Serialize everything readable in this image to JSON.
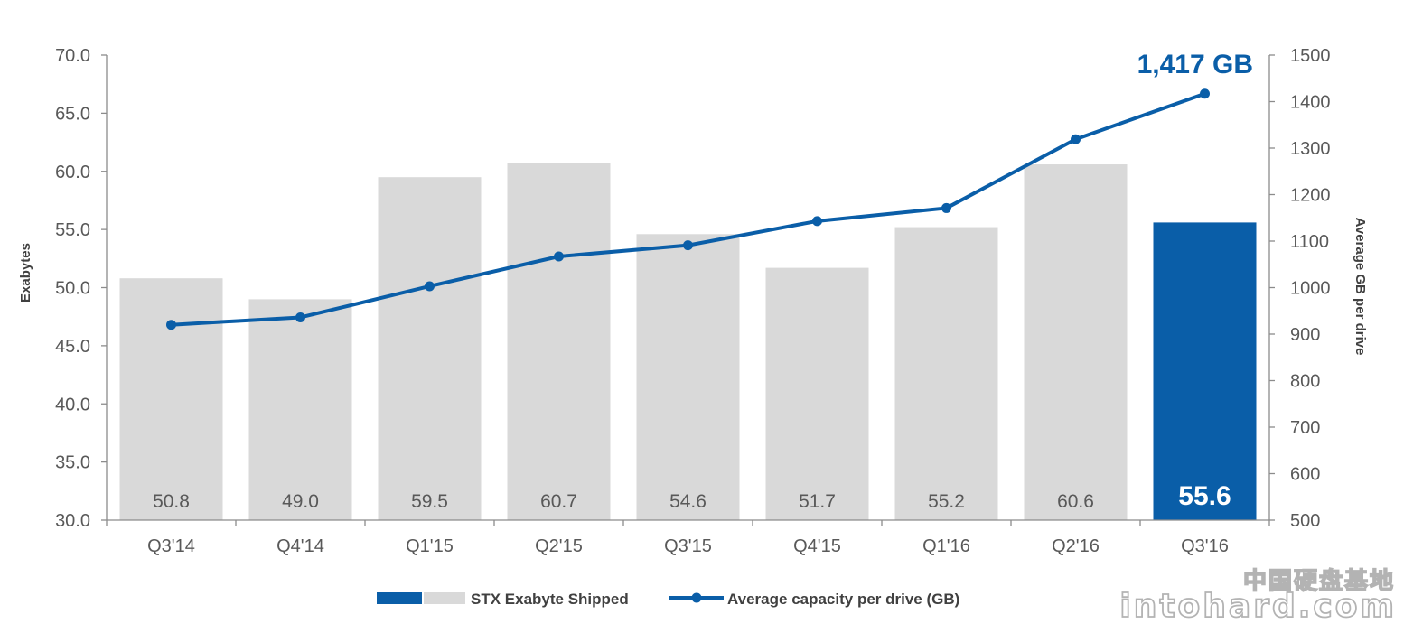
{
  "chart_data": {
    "type": "bar",
    "categories": [
      "Q3'14",
      "Q4'14",
      "Q1'15",
      "Q2'15",
      "Q3'15",
      "Q4'15",
      "Q1'16",
      "Q2'16",
      "Q3'16"
    ],
    "ylabel": "Exabytes",
    "y2label": "Average GB per drive",
    "ylim": [
      30,
      70
    ],
    "y2lim": [
      500,
      1500
    ],
    "yticks": [
      "30.0",
      "35.0",
      "40.0",
      "45.0",
      "50.0",
      "55.0",
      "60.0",
      "65.0",
      "70.0"
    ],
    "y2ticks": [
      "500",
      "600",
      "700",
      "800",
      "900",
      "1000",
      "1100",
      "1200",
      "1300",
      "1400",
      "1500"
    ],
    "series": [
      {
        "name": "STX Exabyte Shipped",
        "type": "bar",
        "axis": "left",
        "values": [
          50.8,
          49.0,
          59.5,
          60.7,
          54.6,
          51.7,
          55.2,
          60.6,
          55.6
        ],
        "labels": [
          "50.8",
          "49.0",
          "59.5",
          "60.7",
          "54.6",
          "51.7",
          "55.2",
          "60.6",
          "55.6"
        ],
        "color": "#d9d9d9",
        "highlight_color": "#0a5ea8",
        "highlight_index": 8
      },
      {
        "name": "Average capacity per drive (GB)",
        "type": "line",
        "axis": "right",
        "values": [
          920,
          936,
          1003,
          1067,
          1091,
          1143,
          1171,
          1319,
          1417
        ],
        "color": "#0a5ea8"
      }
    ],
    "callout": "1,417 GB",
    "legend_position": "bottom",
    "grid": false
  },
  "watermark": {
    "line1": "中国硬盘基地",
    "line2": "intohard.com"
  }
}
